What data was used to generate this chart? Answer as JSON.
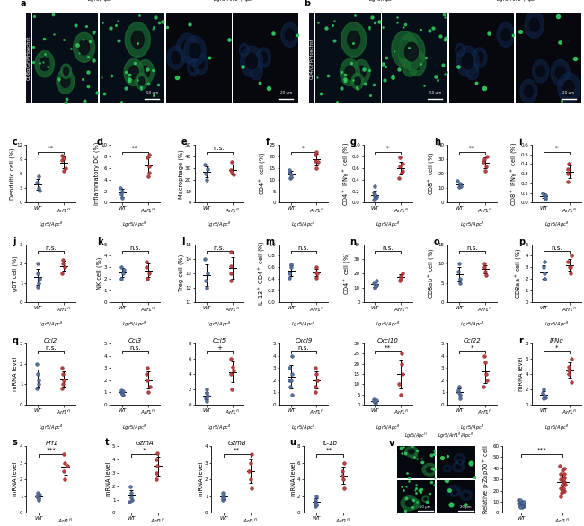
{
  "wt_color": "#5872a0",
  "art_color": "#b84040",
  "dark_wt": "#2a4070",
  "dark_art": "#8b1818",
  "panels": {
    "c": {
      "ylabel": "Dendritic cell (%)",
      "ylim": [
        0,
        12
      ],
      "yticks": [
        0,
        3,
        6,
        9,
        12
      ],
      "sig": "**",
      "wt": [
        4.2,
        3.0,
        2.5,
        5.5
      ],
      "art": [
        6.5,
        8.8,
        9.2,
        9.8,
        7.2
      ]
    },
    "d": {
      "ylabel": "Inflammatory DC (%)",
      "ylim": [
        0,
        10
      ],
      "yticks": [
        0,
        2,
        4,
        6,
        8,
        10
      ],
      "sig": "**",
      "wt": [
        0.8,
        2.0,
        2.5,
        1.5
      ],
      "art": [
        4.5,
        6.2,
        7.8,
        8.2,
        5.2
      ]
    },
    "e": {
      "ylabel": "Macrophage (%)",
      "ylim": [
        0,
        50
      ],
      "yticks": [
        0,
        10,
        20,
        30,
        40,
        50
      ],
      "sig": "n.s.",
      "wt": [
        33.0,
        25.0,
        20.0,
        29.0
      ],
      "art": [
        28.0,
        24.0,
        35.0,
        27.0
      ]
    },
    "f": {
      "ylabel": "CD4$^+$ cell (%)",
      "ylim": [
        0,
        25
      ],
      "yticks": [
        0,
        5,
        10,
        15,
        20,
        25
      ],
      "sig": "*",
      "wt": [
        12.0,
        10.5,
        13.5,
        11.0,
        14.0
      ],
      "art": [
        15.0,
        18.0,
        20.5,
        22.0,
        17.5
      ]
    },
    "g": {
      "ylabel": "CD4$^+$ IFNγ$^+$ cell (%)",
      "ylim": [
        0,
        1.0
      ],
      "yticks": [
        0.0,
        0.2,
        0.4,
        0.6,
        0.8,
        1.0
      ],
      "sig": "*",
      "wt": [
        0.1,
        0.12,
        0.18,
        0.08,
        0.28,
        0.05,
        0.15
      ],
      "art": [
        0.42,
        0.62,
        0.78,
        0.52,
        0.68,
        0.55
      ]
    },
    "h": {
      "ylabel": "CD8$^+$ cell (%)",
      "ylim": [
        0,
        40
      ],
      "yticks": [
        0,
        10,
        20,
        30,
        40
      ],
      "sig": "**",
      "wt": [
        12.0,
        10.5,
        15.0,
        13.0,
        11.5
      ],
      "art": [
        22.0,
        28.0,
        32.0,
        25.0,
        30.0
      ]
    },
    "i": {
      "ylabel": "CD8$^+$ IFNγ$^+$ cell (%)",
      "ylim": [
        0,
        0.6
      ],
      "yticks": [
        0.0,
        0.1,
        0.2,
        0.3,
        0.4,
        0.5,
        0.6
      ],
      "sig": "*",
      "wt": [
        0.04,
        0.08,
        0.1,
        0.06
      ],
      "art": [
        0.22,
        0.3,
        0.4,
        0.35
      ]
    },
    "j": {
      "ylabel": "gδT cell (%)",
      "ylim": [
        0,
        3
      ],
      "yticks": [
        0,
        1,
        2,
        3
      ],
      "sig": "n.s.",
      "wt": [
        1.0,
        0.8,
        1.5,
        2.0,
        1.2
      ],
      "art": [
        1.8,
        2.0,
        1.5,
        2.2
      ]
    },
    "k": {
      "ylabel": "NK cell (%)",
      "ylim": [
        0,
        5
      ],
      "yticks": [
        0,
        1,
        2,
        3,
        4,
        5
      ],
      "sig": "n.s.",
      "wt": [
        2.5,
        2.0,
        3.0,
        2.8
      ],
      "art": [
        2.0,
        3.0,
        2.5,
        3.5
      ]
    },
    "l": {
      "ylabel": "Treg cell (%)",
      "ylim": [
        11,
        15
      ],
      "yticks": [
        11,
        12,
        13,
        14,
        15
      ],
      "sig": "n.s.",
      "wt": [
        12.5,
        13.0,
        14.0,
        12.0
      ],
      "art": [
        12.5,
        13.5,
        14.5,
        13.0
      ]
    },
    "m": {
      "ylabel": "IL-13$^+$ CD4$^+$ cell (%)",
      "ylim": [
        0,
        1.0
      ],
      "yticks": [
        0.0,
        0.2,
        0.4,
        0.6,
        0.8,
        1.0
      ],
      "sig": "n.s.",
      "wt": [
        0.5,
        0.6,
        0.65,
        0.42
      ],
      "art": [
        0.42,
        0.52,
        0.6,
        0.5
      ]
    },
    "n": {
      "ylabel": "CD4$^+$ cell (%)",
      "ylim": [
        0,
        40
      ],
      "yticks": [
        0,
        10,
        20,
        30,
        40
      ],
      "sig": "n.s.",
      "wt": [
        10.0,
        12.0,
        15.0,
        11.0,
        13.0
      ],
      "art": [
        18.0,
        15.0,
        20.0,
        16.0
      ]
    },
    "o": {
      "ylabel": "CD8ab$^+$ cell (%)",
      "ylim": [
        0,
        15
      ],
      "yticks": [
        0,
        5,
        10,
        15
      ],
      "sig": "n.s.",
      "wt": [
        5.0,
        8.0,
        10.0,
        6.0
      ],
      "art": [
        7.0,
        9.0,
        8.0,
        10.0
      ]
    },
    "p": {
      "ylabel": "CD8aa$^+$ cell (%)",
      "ylim": [
        0,
        5
      ],
      "yticks": [
        0,
        1,
        2,
        3,
        4,
        5
      ],
      "sig": "n.s.",
      "wt": [
        2.0,
        2.5,
        3.5,
        2.0,
        3.0
      ],
      "art": [
        2.5,
        3.0,
        3.5,
        3.0,
        4.0
      ]
    },
    "q_Ccl2": {
      "gene": "Ccl2",
      "ylim": [
        0,
        3
      ],
      "yticks": [
        0,
        1,
        2,
        3
      ],
      "sig": "n.s.",
      "wt": [
        0.8,
        1.0,
        1.5,
        2.0,
        1.2
      ],
      "art": [
        0.8,
        1.2,
        1.0,
        1.5,
        1.8
      ]
    },
    "q_Ccl3": {
      "gene": "Ccl3",
      "ylim": [
        0,
        5
      ],
      "yticks": [
        0,
        1,
        2,
        3,
        4,
        5
      ],
      "sig": "n.s.",
      "wt": [
        0.8,
        1.0,
        1.2,
        0.9,
        1.1
      ],
      "art": [
        1.0,
        2.0,
        3.0,
        2.5,
        1.5
      ]
    },
    "q_Ccl5": {
      "gene": "Ccl5",
      "ylim": [
        0,
        8
      ],
      "yticks": [
        0,
        2,
        4,
        6,
        8
      ],
      "sig": "+",
      "wt": [
        0.8,
        1.0,
        1.5,
        0.5,
        2.0,
        1.2
      ],
      "art": [
        2.0,
        4.0,
        5.0,
        6.0,
        4.5
      ]
    },
    "q_Cxcl9": {
      "gene": "Cxcl9",
      "ylim": [
        0,
        5
      ],
      "yticks": [
        0,
        1,
        2,
        3,
        4,
        5
      ],
      "sig": "n.s.",
      "wt": [
        0.8,
        2.0,
        4.0,
        1.5,
        2.5,
        3.0,
        2.0
      ],
      "art": [
        1.0,
        2.0,
        1.5,
        3.0,
        2.5
      ]
    },
    "q_Cxcl10": {
      "gene": "Cxcl10",
      "ylim": [
        0,
        30
      ],
      "yticks": [
        0,
        5,
        10,
        15,
        20,
        25,
        30
      ],
      "sig": "**",
      "wt": [
        1.0,
        2.0,
        1.5,
        2.5,
        1.8
      ],
      "art": [
        5.0,
        10.0,
        20.0,
        25.0,
        15.0
      ]
    },
    "q_Ccl22": {
      "gene": "Ccl22",
      "ylim": [
        0,
        5
      ],
      "yticks": [
        0,
        1,
        2,
        3,
        4,
        5
      ],
      "sig": "*",
      "wt": [
        0.8,
        1.0,
        1.5,
        0.5,
        1.2
      ],
      "art": [
        1.5,
        2.5,
        3.5,
        4.0,
        2.0
      ]
    },
    "r": {
      "gene": "IFNg",
      "ylim": [
        0,
        8
      ],
      "yticks": [
        0,
        2,
        4,
        6,
        8
      ],
      "sig": "*",
      "wt": [
        1.0,
        0.8,
        2.0,
        1.5,
        1.2
      ],
      "art": [
        3.0,
        4.0,
        5.0,
        6.0,
        4.5
      ]
    },
    "s": {
      "gene": "Prf1",
      "ylim": [
        0,
        4
      ],
      "yticks": [
        0,
        1,
        2,
        3,
        4
      ],
      "sig": "***",
      "wt": [
        0.8,
        1.0,
        1.2,
        0.9,
        1.1
      ],
      "art": [
        2.0,
        2.5,
        3.0,
        3.5,
        2.8
      ]
    },
    "t_GzmA": {
      "gene": "GzmA",
      "ylim": [
        0,
        5
      ],
      "yticks": [
        0,
        1,
        2,
        3,
        4,
        5
      ],
      "sig": "*",
      "wt": [
        0.8,
        1.0,
        1.5,
        2.0,
        1.2
      ],
      "art": [
        2.5,
        3.5,
        4.0,
        4.5,
        3.0
      ]
    },
    "t_GzmB": {
      "gene": "GzmB",
      "ylim": [
        0,
        4
      ],
      "yticks": [
        0,
        1,
        2,
        3,
        4
      ],
      "sig": "**",
      "wt": [
        0.8,
        1.0,
        1.2,
        0.9
      ],
      "art": [
        1.5,
        2.0,
        3.0,
        3.5,
        2.5
      ]
    },
    "u": {
      "gene": "IL-1b",
      "ylim": [
        0,
        8
      ],
      "yticks": [
        0,
        2,
        4,
        6,
        8
      ],
      "sig": "**",
      "wt": [
        0.8,
        1.5,
        2.0,
        1.2,
        1.0
      ],
      "art": [
        3.0,
        4.0,
        5.0,
        6.0,
        4.5
      ]
    },
    "v": {
      "ylabel": "Relative p·Zap70$^+$ cell",
      "ylim": [
        0,
        60
      ],
      "yticks": [
        0,
        10,
        20,
        30,
        40,
        50,
        60
      ],
      "sig": "***",
      "wt": [
        5,
        8,
        10,
        6,
        7,
        9,
        12,
        8,
        6,
        10,
        11,
        7,
        8,
        9,
        6,
        5,
        10,
        12
      ],
      "art": [
        15,
        20,
        25,
        30,
        22,
        18,
        28,
        35,
        40,
        25,
        30,
        22,
        20,
        28,
        32,
        25,
        38,
        42,
        30,
        35
      ]
    }
  }
}
